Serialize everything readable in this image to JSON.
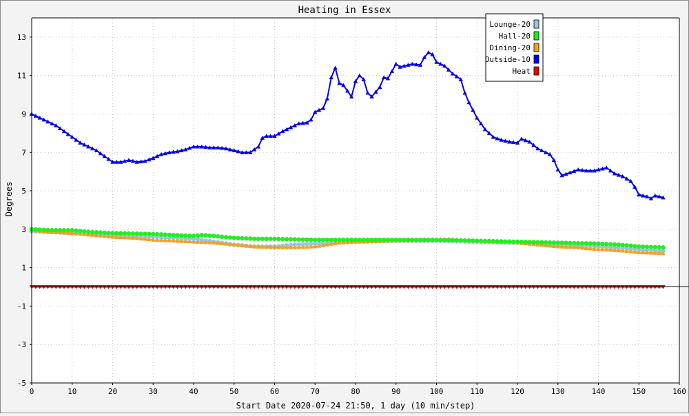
{
  "chart_data": {
    "type": "line",
    "title": "Heating in Essex",
    "xlabel": "Start Date 2020-07-24 21:50, 1 day (10 min/step)",
    "ylabel": "Degrees",
    "xlim": [
      0,
      160
    ],
    "ylim": [
      -5,
      14
    ],
    "x_ticks": [
      0,
      10,
      20,
      30,
      40,
      50,
      60,
      70,
      80,
      90,
      100,
      110,
      120,
      130,
      140,
      150,
      160
    ],
    "y_ticks": [
      -5,
      -3,
      -1,
      1,
      3,
      5,
      7,
      9,
      11,
      13
    ],
    "grid": true,
    "legend_position": "top-right",
    "series": [
      {
        "name": "Lounge-20",
        "color": "#99c4e0",
        "marker": "circle",
        "points": [
          [
            0,
            2.9
          ],
          [
            10,
            2.8
          ],
          [
            20,
            2.7
          ],
          [
            30,
            2.6
          ],
          [
            40,
            2.5
          ],
          [
            45,
            2.35
          ],
          [
            50,
            2.2
          ],
          [
            55,
            2.1
          ],
          [
            60,
            2.1
          ],
          [
            65,
            2.2
          ],
          [
            70,
            2.25
          ],
          [
            75,
            2.3
          ],
          [
            80,
            2.35
          ],
          [
            90,
            2.4
          ],
          [
            100,
            2.4
          ],
          [
            110,
            2.35
          ],
          [
            120,
            2.3
          ],
          [
            130,
            2.2
          ],
          [
            140,
            2.1
          ],
          [
            150,
            1.95
          ],
          [
            156,
            1.85
          ]
        ]
      },
      {
        "name": "Hall-20",
        "color": "#22ee22",
        "marker": "circle",
        "points": [
          [
            0,
            3.0
          ],
          [
            5,
            2.95
          ],
          [
            10,
            2.95
          ],
          [
            15,
            2.85
          ],
          [
            20,
            2.8
          ],
          [
            30,
            2.75
          ],
          [
            35,
            2.7
          ],
          [
            40,
            2.65
          ],
          [
            42,
            2.7
          ],
          [
            45,
            2.65
          ],
          [
            50,
            2.55
          ],
          [
            55,
            2.5
          ],
          [
            60,
            2.5
          ],
          [
            70,
            2.45
          ],
          [
            80,
            2.45
          ],
          [
            90,
            2.45
          ],
          [
            100,
            2.45
          ],
          [
            110,
            2.4
          ],
          [
            120,
            2.35
          ],
          [
            130,
            2.3
          ],
          [
            140,
            2.25
          ],
          [
            145,
            2.2
          ],
          [
            150,
            2.1
          ],
          [
            156,
            2.05
          ]
        ]
      },
      {
        "name": "Dining-20",
        "color": "#f4a020",
        "marker": "triangle-up",
        "points": [
          [
            0,
            2.95
          ],
          [
            5,
            2.85
          ],
          [
            10,
            2.8
          ],
          [
            15,
            2.7
          ],
          [
            20,
            2.6
          ],
          [
            25,
            2.55
          ],
          [
            30,
            2.45
          ],
          [
            35,
            2.4
          ],
          [
            40,
            2.35
          ],
          [
            45,
            2.3
          ],
          [
            50,
            2.2
          ],
          [
            55,
            2.1
          ],
          [
            60,
            2.05
          ],
          [
            65,
            2.05
          ],
          [
            70,
            2.1
          ],
          [
            73,
            2.2
          ],
          [
            76,
            2.3
          ],
          [
            80,
            2.35
          ],
          [
            90,
            2.4
          ],
          [
            100,
            2.45
          ],
          [
            103,
            2.5
          ],
          [
            110,
            2.4
          ],
          [
            120,
            2.3
          ],
          [
            125,
            2.2
          ],
          [
            130,
            2.1
          ],
          [
            135,
            2.05
          ],
          [
            140,
            1.95
          ],
          [
            145,
            1.9
          ],
          [
            150,
            1.8
          ],
          [
            156,
            1.75
          ]
        ]
      },
      {
        "name": "Outside-10",
        "color": "#0000ee",
        "marker": "triangle-up",
        "points": [
          [
            0,
            9.0
          ],
          [
            2,
            8.8
          ],
          [
            4,
            8.6
          ],
          [
            6,
            8.4
          ],
          [
            8,
            8.1
          ],
          [
            10,
            7.8
          ],
          [
            12,
            7.5
          ],
          [
            14,
            7.3
          ],
          [
            16,
            7.1
          ],
          [
            18,
            6.8
          ],
          [
            20,
            6.5
          ],
          [
            22,
            6.5
          ],
          [
            24,
            6.6
          ],
          [
            26,
            6.5
          ],
          [
            28,
            6.55
          ],
          [
            30,
            6.7
          ],
          [
            32,
            6.9
          ],
          [
            34,
            7.0
          ],
          [
            36,
            7.05
          ],
          [
            38,
            7.15
          ],
          [
            40,
            7.3
          ],
          [
            42,
            7.3
          ],
          [
            44,
            7.25
          ],
          [
            46,
            7.25
          ],
          [
            48,
            7.2
          ],
          [
            50,
            7.1
          ],
          [
            52,
            7.0
          ],
          [
            54,
            7.0
          ],
          [
            56,
            7.3
          ],
          [
            57,
            7.75
          ],
          [
            58,
            7.85
          ],
          [
            60,
            7.85
          ],
          [
            62,
            8.1
          ],
          [
            64,
            8.3
          ],
          [
            66,
            8.5
          ],
          [
            68,
            8.55
          ],
          [
            69,
            8.7
          ],
          [
            70,
            9.1
          ],
          [
            72,
            9.3
          ],
          [
            73,
            9.8
          ],
          [
            74,
            10.9
          ],
          [
            75,
            11.4
          ],
          [
            76,
            10.6
          ],
          [
            77,
            10.5
          ],
          [
            78,
            10.2
          ],
          [
            79,
            9.9
          ],
          [
            80,
            10.7
          ],
          [
            81,
            11.0
          ],
          [
            82,
            10.8
          ],
          [
            83,
            10.1
          ],
          [
            84,
            9.9
          ],
          [
            86,
            10.4
          ],
          [
            87,
            10.9
          ],
          [
            88,
            10.85
          ],
          [
            90,
            11.6
          ],
          [
            91,
            11.45
          ],
          [
            92,
            11.5
          ],
          [
            94,
            11.6
          ],
          [
            96,
            11.55
          ],
          [
            97,
            11.95
          ],
          [
            98,
            12.2
          ],
          [
            99,
            12.1
          ],
          [
            100,
            11.7
          ],
          [
            102,
            11.5
          ],
          [
            104,
            11.1
          ],
          [
            106,
            10.8
          ],
          [
            107,
            10.1
          ],
          [
            108,
            9.6
          ],
          [
            110,
            8.8
          ],
          [
            112,
            8.2
          ],
          [
            114,
            7.8
          ],
          [
            116,
            7.65
          ],
          [
            118,
            7.55
          ],
          [
            120,
            7.5
          ],
          [
            121,
            7.7
          ],
          [
            123,
            7.55
          ],
          [
            125,
            7.2
          ],
          [
            127,
            7.0
          ],
          [
            128,
            6.9
          ],
          [
            129,
            6.6
          ],
          [
            130,
            6.1
          ],
          [
            131,
            5.8
          ],
          [
            133,
            5.95
          ],
          [
            135,
            6.1
          ],
          [
            137,
            6.05
          ],
          [
            139,
            6.05
          ],
          [
            141,
            6.15
          ],
          [
            142,
            6.2
          ],
          [
            144,
            5.9
          ],
          [
            146,
            5.75
          ],
          [
            148,
            5.5
          ],
          [
            149,
            5.2
          ],
          [
            150,
            4.8
          ],
          [
            152,
            4.7
          ],
          [
            153,
            4.6
          ],
          [
            154,
            4.75
          ],
          [
            156,
            4.65
          ]
        ]
      },
      {
        "name": "Heat",
        "color": "#ee0000",
        "marker": "triangle-down",
        "points": [
          [
            0,
            0
          ],
          [
            156,
            0
          ]
        ]
      }
    ]
  }
}
